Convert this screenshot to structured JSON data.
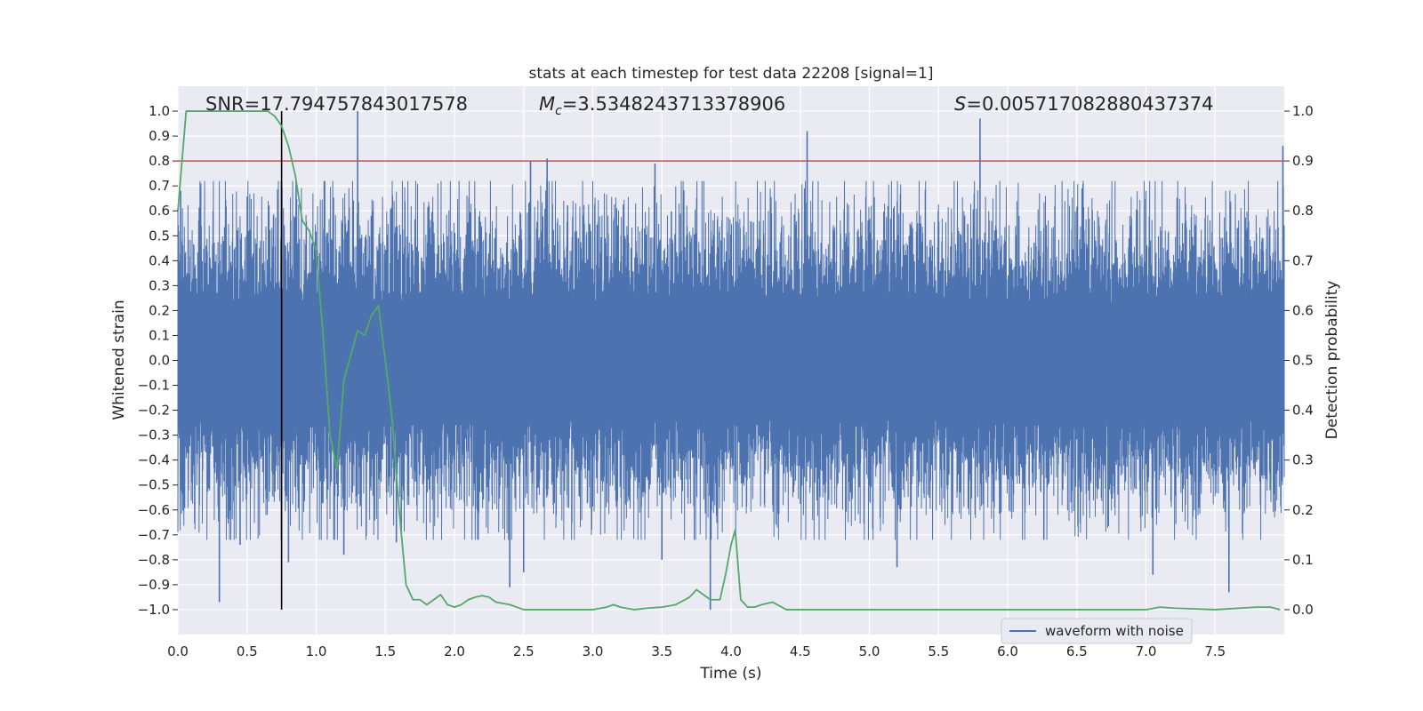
{
  "chart_data": {
    "type": "line",
    "title": "stats at each timestep for test data 22208 [signal=1]",
    "xlabel": "Time (s)",
    "ylabel": "Whitened strain",
    "y2label": "Detection probability",
    "xlim": [
      0.0,
      8.0
    ],
    "ylim": [
      -1.1,
      1.1
    ],
    "y2lim": [
      -0.05,
      1.05
    ],
    "x_ticks": [
      "0.0",
      "0.5",
      "1.0",
      "1.5",
      "2.0",
      "2.5",
      "3.0",
      "3.5",
      "4.0",
      "4.5",
      "5.0",
      "5.5",
      "6.0",
      "6.5",
      "7.0",
      "7.5"
    ],
    "y_ticks": [
      "1.0",
      "0.9",
      "0.8",
      "0.7",
      "0.6",
      "0.5",
      "0.4",
      "0.3",
      "0.2",
      "0.1",
      "0.0",
      "−0.1",
      "−0.2",
      "−0.3",
      "−0.4",
      "−0.5",
      "−0.6",
      "−0.7",
      "−0.8",
      "−0.9",
      "−1.0"
    ],
    "y2_ticks": [
      "1.0",
      "0.9",
      "0.8",
      "0.7",
      "0.6",
      "0.5",
      "0.4",
      "0.3",
      "0.2",
      "0.1",
      "0.0"
    ],
    "grid": true,
    "legend": {
      "entries": [
        "waveform with noise"
      ],
      "placement": "lower-right"
    },
    "annotations": {
      "snr": "SNR=17.794757843017578",
      "mc_symbol": "M",
      "mc_sub": "c",
      "mc_value": "=3.5348243713378906",
      "s_symbol": "S",
      "s_value": "=0.005717082880437374"
    },
    "threshold": {
      "y2": 0.9,
      "color": "#c44e52"
    },
    "marker_time": 0.75,
    "series": [
      {
        "name": "waveform with noise",
        "color": "#4c72b0",
        "kind": "noise",
        "x_range": [
          0.0,
          8.0
        ],
        "typical_amplitude": 0.42,
        "peaks": [
          {
            "x": 0.02,
            "y": 0.68
          },
          {
            "x": 0.02,
            "y": -0.52
          },
          {
            "x": 0.3,
            "y": -0.97
          },
          {
            "x": 0.45,
            "y": -0.74
          },
          {
            "x": 0.8,
            "y": -0.81
          },
          {
            "x": 1.2,
            "y": -0.78
          },
          {
            "x": 1.3,
            "y": 1.0
          },
          {
            "x": 1.58,
            "y": -0.73
          },
          {
            "x": 2.4,
            "y": -0.91
          },
          {
            "x": 2.5,
            "y": -0.85
          },
          {
            "x": 2.55,
            "y": 0.8
          },
          {
            "x": 2.67,
            "y": 0.81
          },
          {
            "x": 3.45,
            "y": 0.79
          },
          {
            "x": 3.5,
            "y": -0.8
          },
          {
            "x": 3.85,
            "y": -1.0
          },
          {
            "x": 4.55,
            "y": 0.92
          },
          {
            "x": 5.2,
            "y": -0.83
          },
          {
            "x": 5.8,
            "y": 0.97
          },
          {
            "x": 7.05,
            "y": -0.86
          },
          {
            "x": 7.6,
            "y": -0.93
          },
          {
            "x": 7.99,
            "y": 0.86
          }
        ]
      },
      {
        "name": "",
        "color": "#55a868",
        "axis": "y2",
        "x": [
          0.0,
          0.06,
          0.1,
          0.2,
          0.3,
          0.4,
          0.5,
          0.6,
          0.65,
          0.7,
          0.75,
          0.8,
          0.85,
          0.9,
          0.95,
          1.0,
          1.05,
          1.1,
          1.15,
          1.2,
          1.25,
          1.3,
          1.35,
          1.4,
          1.45,
          1.5,
          1.55,
          1.6,
          1.65,
          1.7,
          1.75,
          1.8,
          1.85,
          1.9,
          1.95,
          2.0,
          2.05,
          2.1,
          2.15,
          2.2,
          2.25,
          2.3,
          2.4,
          2.5,
          2.6,
          2.8,
          3.0,
          3.1,
          3.15,
          3.2,
          3.3,
          3.4,
          3.5,
          3.6,
          3.7,
          3.75,
          3.8,
          3.85,
          3.92,
          3.96,
          4.0,
          4.03,
          4.07,
          4.12,
          4.17,
          4.22,
          4.3,
          4.4,
          4.6,
          5.0,
          5.5,
          6.0,
          6.5,
          7.0,
          7.1,
          7.2,
          7.5,
          7.8,
          7.9,
          7.97
        ],
        "y": [
          0.8,
          1.0,
          1.0,
          1.0,
          1.0,
          1.0,
          1.0,
          1.0,
          1.0,
          0.99,
          0.97,
          0.93,
          0.87,
          0.78,
          0.76,
          0.72,
          0.55,
          0.35,
          0.28,
          0.46,
          0.51,
          0.56,
          0.55,
          0.59,
          0.61,
          0.5,
          0.38,
          0.2,
          0.05,
          0.02,
          0.02,
          0.01,
          0.02,
          0.03,
          0.01,
          0.005,
          0.01,
          0.02,
          0.025,
          0.028,
          0.025,
          0.015,
          0.01,
          0.0,
          0.0,
          0.0,
          0.0,
          0.005,
          0.01,
          0.005,
          0.0,
          0.003,
          0.005,
          0.01,
          0.025,
          0.04,
          0.03,
          0.02,
          0.02,
          0.07,
          0.13,
          0.16,
          0.02,
          0.005,
          0.005,
          0.01,
          0.015,
          0.0,
          0.0,
          0.0,
          0.0,
          0.0,
          0.0,
          0.0,
          0.005,
          0.003,
          0.0,
          0.005,
          0.005,
          0.0
        ]
      }
    ]
  }
}
